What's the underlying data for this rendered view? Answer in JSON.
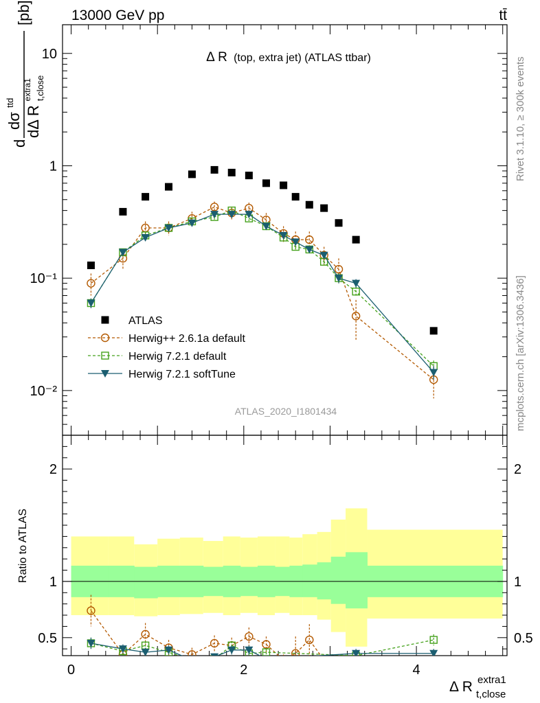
{
  "header": {
    "energy_label": "13000 GeV pp",
    "process_label": "tt̄",
    "rivet_label": "Rivet 3.1.10, ≥ 300k events",
    "mcplots_label": "mcplots.cern.ch [arXiv:1306.3436]",
    "analysis_id": "ATLAS_2020_I1801434"
  },
  "main_panel": {
    "title_main": "Δ R",
    "title_sub": "(top, extra jet) (ATLAS ttbar)",
    "ylabel_d": "d",
    "ylabel_dsigma": "dσ",
    "ylabel_dsigma_sup": "ttd",
    "ylabel_dDR": "dΔ R",
    "ylabel_dDR_sub": "t,close",
    "ylabel_dDR_sup": "extra1",
    "ylabel_unit": "[pb]",
    "y_ticks": [
      {
        "value": 10,
        "label": "10"
      },
      {
        "value": 1,
        "label": "1"
      },
      {
        "value": 0.1,
        "label": "10⁻¹"
      },
      {
        "value": 0.01,
        "label": "10⁻²"
      }
    ]
  },
  "ratio_panel": {
    "ylabel": "Ratio to ATLAS",
    "y_ticks": [
      {
        "value": 0.5,
        "label": "0.5"
      },
      {
        "value": 1,
        "label": "1"
      },
      {
        "value": 2,
        "label": "2"
      }
    ]
  },
  "x_axis": {
    "label_main": "Δ R",
    "label_sub": "t,close",
    "label_sup": "extra1",
    "ticks": [
      {
        "value": 0,
        "label": "0"
      },
      {
        "value": 2,
        "label": "2"
      },
      {
        "value": 4,
        "label": "4"
      }
    ]
  },
  "legend": [
    {
      "key": "atlas",
      "label": "ATLAS"
    },
    {
      "key": "herwigpp",
      "label": "Herwig++ 2.6.1a default"
    },
    {
      "key": "h721",
      "label": "Herwig 7.2.1 default"
    },
    {
      "key": "h721soft",
      "label": "Herwig 7.2.1 softTune"
    }
  ],
  "colors": {
    "atlas": "#000000",
    "herwigpp": "#b35900",
    "h721": "#44a11b",
    "h721soft": "#1b5e70",
    "band_inner": "#99ff99",
    "band_outer": "#ffff99"
  },
  "chart_data": {
    "type": "scatter",
    "x_range": [
      -0.1,
      5.05
    ],
    "main_ylim": [
      0.004,
      18
    ],
    "main_ylog": true,
    "ratio_ylim": [
      0.34,
      2.3
    ],
    "atlas": {
      "x": [
        0.23,
        0.6,
        0.86,
        1.13,
        1.4,
        1.66,
        1.86,
        2.06,
        2.26,
        2.46,
        2.6,
        2.76,
        2.93,
        3.1,
        3.3,
        4.2
      ],
      "y": [
        0.13,
        0.39,
        0.53,
        0.65,
        0.84,
        0.92,
        0.87,
        0.82,
        0.7,
        0.67,
        0.53,
        0.45,
        0.42,
        0.31,
        0.22,
        0.034
      ]
    },
    "herwigpp": {
      "x": [
        0.23,
        0.6,
        0.86,
        1.13,
        1.4,
        1.66,
        1.86,
        2.06,
        2.26,
        2.46,
        2.6,
        2.76,
        2.93,
        3.1,
        3.3,
        4.2
      ],
      "y": [
        0.09,
        0.15,
        0.28,
        0.28,
        0.34,
        0.43,
        0.38,
        0.42,
        0.33,
        0.25,
        0.22,
        0.22,
        0.16,
        0.12,
        0.046,
        0.0125
      ],
      "yerr": [
        0.02,
        0.03,
        0.04,
        0.04,
        0.05,
        0.05,
        0.05,
        0.05,
        0.05,
        0.04,
        0.04,
        0.04,
        0.03,
        0.03,
        0.018,
        0.004
      ]
    },
    "h721": {
      "x": [
        0.23,
        0.6,
        0.86,
        1.13,
        1.4,
        1.66,
        1.86,
        2.06,
        2.26,
        2.46,
        2.6,
        2.76,
        2.93,
        3.1,
        3.3,
        4.2
      ],
      "y": [
        0.06,
        0.17,
        0.24,
        0.28,
        0.32,
        0.35,
        0.4,
        0.34,
        0.29,
        0.23,
        0.19,
        0.18,
        0.14,
        0.1,
        0.076,
        0.0165
      ],
      "yerr": [
        0.006,
        0.012,
        0.015,
        0.015,
        0.016,
        0.018,
        0.02,
        0.018,
        0.016,
        0.014,
        0.012,
        0.011,
        0.01,
        0.01,
        0.008,
        0.002
      ]
    },
    "h721soft": {
      "x": [
        0.23,
        0.6,
        0.86,
        1.13,
        1.4,
        1.66,
        1.86,
        2.06,
        2.26,
        2.46,
        2.6,
        2.76,
        2.93,
        3.1,
        3.3,
        4.2
      ],
      "y": [
        0.06,
        0.17,
        0.23,
        0.28,
        0.31,
        0.37,
        0.37,
        0.37,
        0.29,
        0.24,
        0.21,
        0.18,
        0.16,
        0.1,
        0.09,
        0.0145
      ],
      "yerr": [
        0.006,
        0.012,
        0.014,
        0.015,
        0.016,
        0.02,
        0.02,
        0.02,
        0.016,
        0.014,
        0.012,
        0.011,
        0.01,
        0.01,
        0.008,
        0.002
      ]
    },
    "ratio_bins": [
      {
        "x0": 0.0,
        "x1": 0.43,
        "inner": [
          0.86,
          1.14
        ],
        "outer": [
          0.7,
          1.4
        ]
      },
      {
        "x0": 0.43,
        "x1": 0.73,
        "inner": [
          0.86,
          1.14
        ],
        "outer": [
          0.7,
          1.4
        ]
      },
      {
        "x0": 0.73,
        "x1": 1.0,
        "inner": [
          0.85,
          1.13
        ],
        "outer": [
          0.69,
          1.33
        ]
      },
      {
        "x0": 1.0,
        "x1": 1.26,
        "inner": [
          0.86,
          1.14
        ],
        "outer": [
          0.7,
          1.38
        ]
      },
      {
        "x0": 1.26,
        "x1": 1.53,
        "inner": [
          0.86,
          1.14
        ],
        "outer": [
          0.71,
          1.39
        ]
      },
      {
        "x0": 1.53,
        "x1": 1.76,
        "inner": [
          0.87,
          1.13
        ],
        "outer": [
          0.72,
          1.36
        ]
      },
      {
        "x0": 1.76,
        "x1": 1.96,
        "inner": [
          0.86,
          1.14
        ],
        "outer": [
          0.7,
          1.4
        ]
      },
      {
        "x0": 1.96,
        "x1": 2.16,
        "inner": [
          0.87,
          1.13
        ],
        "outer": [
          0.72,
          1.39
        ]
      },
      {
        "x0": 2.16,
        "x1": 2.36,
        "inner": [
          0.86,
          1.14
        ],
        "outer": [
          0.7,
          1.4
        ]
      },
      {
        "x0": 2.36,
        "x1": 2.53,
        "inner": [
          0.87,
          1.13
        ],
        "outer": [
          0.72,
          1.4
        ]
      },
      {
        "x0": 2.53,
        "x1": 2.68,
        "inner": [
          0.86,
          1.14
        ],
        "outer": [
          0.7,
          1.39
        ]
      },
      {
        "x0": 2.68,
        "x1": 2.85,
        "inner": [
          0.86,
          1.15
        ],
        "outer": [
          0.7,
          1.42
        ]
      },
      {
        "x0": 2.85,
        "x1": 3.01,
        "inner": [
          0.84,
          1.17
        ],
        "outer": [
          0.66,
          1.44
        ]
      },
      {
        "x0": 3.01,
        "x1": 3.18,
        "inner": [
          0.8,
          1.22
        ],
        "outer": [
          0.55,
          1.55
        ]
      },
      {
        "x0": 3.18,
        "x1": 3.43,
        "inner": [
          0.76,
          1.26
        ],
        "outer": [
          0.42,
          1.65
        ]
      },
      {
        "x0": 3.43,
        "x1": 5.0,
        "inner": [
          0.86,
          1.14
        ],
        "outer": [
          0.67,
          1.46
        ]
      }
    ],
    "ratio_herwigpp": {
      "x": [
        0.23,
        0.6,
        0.86,
        1.13,
        1.4,
        1.66,
        1.86,
        2.06,
        2.26,
        2.46,
        2.6,
        2.76,
        2.93
      ],
      "y": [
        0.74,
        0.35,
        0.53,
        0.41,
        0.35,
        0.45,
        0.43,
        0.51,
        0.44,
        0.3,
        0.36,
        0.48,
        0.3
      ],
      "yerr": [
        0.14,
        0.05,
        0.1,
        0.07,
        0.06,
        0.07,
        0.07,
        0.08,
        0.07,
        0.05,
        0.15,
        0.14,
        0.05
      ]
    },
    "ratio_h721": {
      "x": [
        0.23,
        0.6,
        0.86,
        1.13,
        1.4,
        1.66,
        1.86,
        2.06,
        2.26,
        3.3,
        4.2
      ],
      "y": [
        0.45,
        0.38,
        0.43,
        0.37,
        0.3,
        0.31,
        0.43,
        0.36,
        0.37,
        0.34,
        0.48
      ],
      "yerr": [
        0.05,
        0.04,
        0.04,
        0.03,
        0.03,
        0.03,
        0.04,
        0.03,
        0.03,
        0.03,
        0.05
      ]
    },
    "ratio_h721soft": {
      "x": [
        0.23,
        0.6,
        0.86,
        1.13,
        1.4,
        1.66,
        1.86,
        2.06,
        2.26,
        3.3,
        4.2
      ],
      "y": [
        0.45,
        0.4,
        0.37,
        0.39,
        0.3,
        0.33,
        0.39,
        0.39,
        0.31,
        0.36,
        0.36
      ],
      "yerr": [
        0.05,
        0.04,
        0.04,
        0.04,
        0.03,
        0.03,
        0.04,
        0.04,
        0.03,
        0.04,
        0.04
      ]
    }
  }
}
